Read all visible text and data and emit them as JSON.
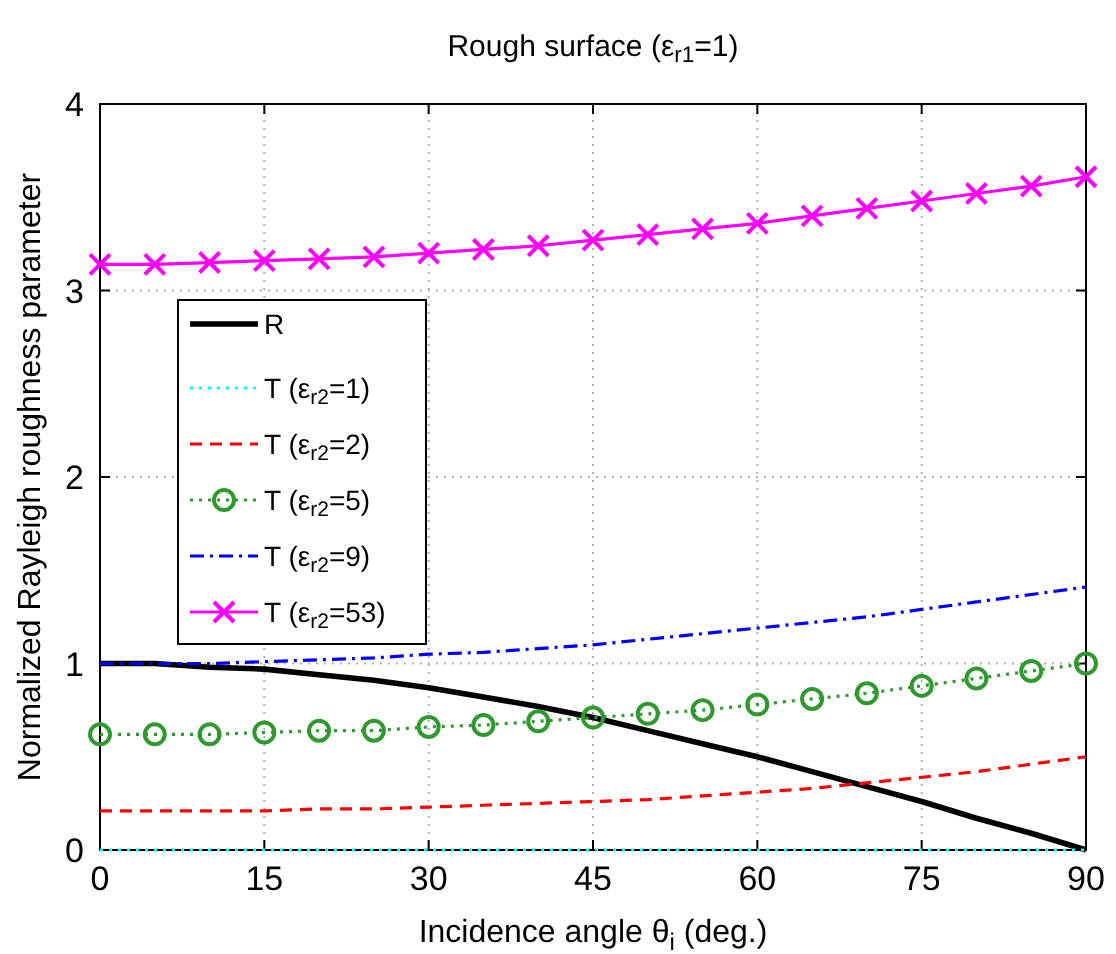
{
  "chart_data": {
    "type": "line",
    "title": "Rough surface (ε$_{r1}$=1)",
    "xlabel": "Incidence angle θ$_{i}$ (deg.)",
    "ylabel": "Normalized Rayleigh roughness parameter",
    "x": [
      0,
      5,
      10,
      15,
      20,
      25,
      30,
      35,
      40,
      45,
      50,
      55,
      60,
      65,
      70,
      75,
      80,
      85,
      90
    ],
    "xlim": [
      0,
      90
    ],
    "xticks": [
      0,
      15,
      30,
      45,
      60,
      75,
      90
    ],
    "ylim": [
      0,
      4
    ],
    "yticks": [
      0,
      1,
      2,
      3,
      4
    ],
    "grid": true,
    "legend": "left",
    "series": [
      {
        "name": "R",
        "color": "#000000",
        "line_style": "solid",
        "marker": "none",
        "values": [
          1,
          1.0,
          0.98,
          0.97,
          0.94,
          0.91,
          0.87,
          0.82,
          0.77,
          0.71,
          0.64,
          0.57,
          0.5,
          0.42,
          0.34,
          0.26,
          0.17,
          0.09,
          0
        ]
      },
      {
        "name": "T (ε$_{r2}$=1)",
        "color": "#00ffff",
        "line_style": "dotted",
        "marker": "none",
        "values": [
          0,
          0,
          0,
          0,
          0,
          0,
          0,
          0,
          0,
          0,
          0,
          0,
          0,
          0,
          0,
          0,
          0,
          0,
          0
        ]
      },
      {
        "name": "T (ε$_{r2}$=2)",
        "color": "#ff0000",
        "line_style": "dashed",
        "marker": "none",
        "values": [
          0.21,
          0.21,
          0.21,
          0.21,
          0.22,
          0.22,
          0.23,
          0.24,
          0.25,
          0.26,
          0.27,
          0.29,
          0.31,
          0.33,
          0.36,
          0.39,
          0.42,
          0.46,
          0.5
        ]
      },
      {
        "name": "T (ε$_{r2}$=5)",
        "color": "#2e9a2e",
        "line_style": "dotted",
        "marker": "circle",
        "values": [
          0.62,
          0.62,
          0.62,
          0.63,
          0.64,
          0.64,
          0.66,
          0.67,
          0.69,
          0.71,
          0.73,
          0.75,
          0.78,
          0.81,
          0.84,
          0.88,
          0.92,
          0.96,
          1.0
        ]
      },
      {
        "name": "T (ε$_{r2}$=9)",
        "color": "#0000ff",
        "line_style": "dashdot",
        "marker": "none",
        "values": [
          1,
          1.0,
          1.0,
          1.01,
          1.02,
          1.03,
          1.05,
          1.06,
          1.08,
          1.1,
          1.13,
          1.16,
          1.19,
          1.22,
          1.25,
          1.29,
          1.33,
          1.37,
          1.41
        ]
      },
      {
        "name": "T (ε$_{r2}$=53)",
        "color": "#ff00ff",
        "line_style": "solid",
        "marker": "cross",
        "values": [
          3.14,
          3.14,
          3.15,
          3.16,
          3.17,
          3.18,
          3.2,
          3.22,
          3.24,
          3.27,
          3.3,
          3.33,
          3.36,
          3.4,
          3.44,
          3.48,
          3.52,
          3.56,
          3.61
        ]
      }
    ]
  }
}
